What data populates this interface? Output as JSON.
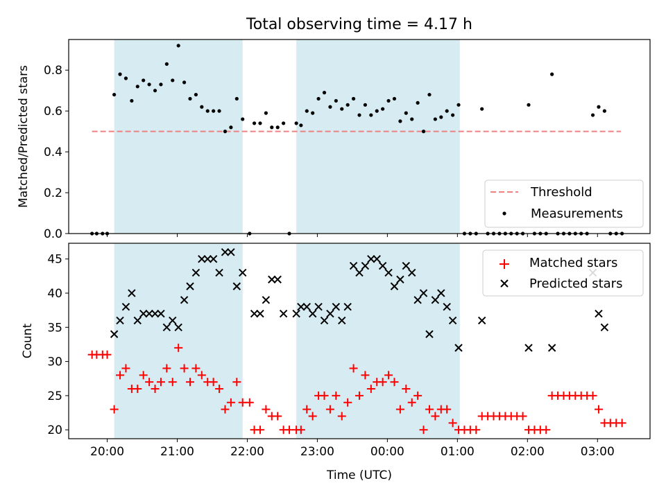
{
  "title": "Total observing time = 4.17 h",
  "chart_data": [
    {
      "type": "scatter",
      "ylabel": "Matched/Predicted stars",
      "ylim": [
        0,
        0.95
      ],
      "yticks": [
        "0.0",
        "0.2",
        "0.4",
        "0.6",
        "0.8"
      ],
      "ytick_values": [
        0,
        0.2,
        0.4,
        0.6,
        0.8
      ],
      "xlim": [
        "19:27",
        "03:45"
      ],
      "shaded_intervals": [
        [
          "20:06",
          "21:56"
        ],
        [
          "22:42",
          "01:02"
        ]
      ],
      "shade_color": "#add8e6",
      "legend_position": "lower right",
      "threshold": {
        "name": "Threshold",
        "value": 0.5,
        "x_range": [
          "19:47",
          "03:20"
        ],
        "color": "#f08080",
        "style": "dashed"
      },
      "series": [
        {
          "name": "Measurements",
          "color": "#000000",
          "x": [
            "19:47",
            "19:51",
            "19:56",
            "20:00",
            "20:06",
            "20:11",
            "20:16",
            "20:21",
            "20:26",
            "20:31",
            "20:36",
            "20:41",
            "20:46",
            "20:51",
            "20:56",
            "21:01",
            "21:06",
            "21:11",
            "21:16",
            "21:21",
            "21:26",
            "21:31",
            "21:36",
            "21:41",
            "21:46",
            "21:51",
            "21:56",
            "22:02",
            "22:06",
            "22:11",
            "22:16",
            "22:21",
            "22:26",
            "22:31",
            "22:36",
            "22:42",
            "22:46",
            "22:51",
            "22:56",
            "23:01",
            "23:06",
            "23:11",
            "23:16",
            "23:21",
            "23:26",
            "23:31",
            "23:36",
            "23:41",
            "23:46",
            "23:51",
            "23:56",
            "00:01",
            "00:06",
            "00:11",
            "00:16",
            "00:21",
            "00:26",
            "00:31",
            "00:36",
            "00:41",
            "00:46",
            "00:51",
            "00:56",
            "01:01",
            "01:06",
            "01:11",
            "01:16",
            "01:21",
            "01:26",
            "01:31",
            "01:36",
            "01:41",
            "01:46",
            "01:51",
            "01:56",
            "02:01",
            "02:06",
            "02:11",
            "02:16",
            "02:21",
            "02:26",
            "02:31",
            "02:36",
            "02:41",
            "02:46",
            "02:51",
            "02:56",
            "03:01",
            "03:06",
            "03:11",
            "03:16",
            "03:21"
          ],
          "y": [
            0.0,
            0.0,
            0.0,
            0.0,
            0.68,
            0.78,
            0.76,
            0.65,
            0.72,
            0.75,
            0.73,
            0.7,
            0.73,
            0.83,
            0.75,
            0.92,
            0.74,
            0.66,
            0.68,
            0.62,
            0.6,
            0.6,
            0.6,
            0.5,
            0.52,
            0.66,
            0.56,
            0.0,
            0.54,
            0.54,
            0.59,
            0.52,
            0.52,
            0.54,
            0.0,
            0.54,
            0.53,
            0.6,
            0.59,
            0.66,
            0.69,
            0.62,
            0.65,
            0.61,
            0.63,
            0.66,
            0.58,
            0.63,
            0.58,
            0.6,
            0.61,
            0.65,
            0.66,
            0.55,
            0.59,
            0.56,
            0.64,
            0.5,
            0.68,
            0.56,
            0.57,
            0.6,
            0.58,
            0.63,
            0.0,
            0.0,
            0.0,
            0.61,
            0.0,
            0.0,
            0.0,
            0.0,
            0.0,
            0.0,
            0.0,
            0.63,
            0.0,
            0.0,
            0.0,
            0.78,
            0.0,
            0.0,
            0.0,
            0.0,
            0.0,
            0.0,
            0.58,
            0.62,
            0.6,
            0.0,
            0.0,
            0.0
          ]
        }
      ]
    },
    {
      "type": "scatter",
      "xlabel": "Time (UTC)",
      "ylabel": "Count",
      "ylim": [
        18.7,
        47.3
      ],
      "yticks": [
        "20",
        "25",
        "30",
        "35",
        "40",
        "45"
      ],
      "ytick_values": [
        20,
        25,
        30,
        35,
        40,
        45
      ],
      "xticks": [
        "20:00",
        "21:00",
        "22:00",
        "23:00",
        "00:00",
        "01:00",
        "02:00",
        "03:00"
      ],
      "xlim": [
        "19:27",
        "03:45"
      ],
      "shaded_intervals": [
        [
          "20:06",
          "21:56"
        ],
        [
          "22:42",
          "01:02"
        ]
      ],
      "shade_color": "#add8e6",
      "legend_position": "upper right",
      "series": [
        {
          "name": "Matched stars",
          "color": "#ff0000",
          "x": [
            "19:47",
            "19:51",
            "19:56",
            "20:00",
            "20:06",
            "20:11",
            "20:16",
            "20:21",
            "20:26",
            "20:31",
            "20:36",
            "20:41",
            "20:46",
            "20:51",
            "20:56",
            "21:01",
            "21:06",
            "21:11",
            "21:16",
            "21:21",
            "21:26",
            "21:31",
            "21:36",
            "21:41",
            "21:46",
            "21:51",
            "21:56",
            "22:02",
            "22:06",
            "22:11",
            "22:16",
            "22:21",
            "22:26",
            "22:31",
            "22:36",
            "22:42",
            "22:46",
            "22:51",
            "22:56",
            "23:01",
            "23:06",
            "23:11",
            "23:16",
            "23:21",
            "23:26",
            "23:31",
            "23:36",
            "23:41",
            "23:46",
            "23:51",
            "23:56",
            "00:01",
            "00:06",
            "00:11",
            "00:16",
            "00:21",
            "00:26",
            "00:31",
            "00:36",
            "00:41",
            "00:46",
            "00:51",
            "00:56",
            "01:01",
            "01:06",
            "01:11",
            "01:16",
            "01:21",
            "01:26",
            "01:31",
            "01:36",
            "01:41",
            "01:46",
            "01:51",
            "01:56",
            "02:01",
            "02:06",
            "02:11",
            "02:16",
            "02:21",
            "02:26",
            "02:31",
            "02:36",
            "02:41",
            "02:46",
            "02:51",
            "02:56",
            "03:01",
            "03:06",
            "03:11",
            "03:16",
            "03:21"
          ],
          "y": [
            31,
            31,
            31,
            31,
            23,
            28,
            29,
            26,
            26,
            28,
            27,
            26,
            27,
            29,
            27,
            32,
            29,
            27,
            29,
            28,
            27,
            27,
            26,
            23,
            24,
            27,
            24,
            24,
            20,
            20,
            23,
            22,
            22,
            20,
            20,
            20,
            20,
            23,
            22,
            25,
            25,
            23,
            25,
            22,
            24,
            29,
            25,
            28,
            26,
            27,
            27,
            28,
            27,
            23,
            26,
            24,
            25,
            20,
            23,
            22,
            23,
            23,
            21,
            20,
            20,
            20,
            20,
            22,
            22,
            22,
            22,
            22,
            22,
            22,
            22,
            20,
            20,
            20,
            20,
            25,
            25,
            25,
            25,
            25,
            25,
            25,
            25,
            23,
            21,
            21,
            21,
            21
          ]
        },
        {
          "name": "Predicted stars",
          "color": "#000000",
          "x": [
            "20:06",
            "20:11",
            "20:16",
            "20:21",
            "20:26",
            "20:31",
            "20:36",
            "20:41",
            "20:46",
            "20:51",
            "20:56",
            "21:01",
            "21:06",
            "21:11",
            "21:16",
            "21:21",
            "21:26",
            "21:31",
            "21:36",
            "21:41",
            "21:46",
            "21:51",
            "21:56",
            "22:06",
            "22:11",
            "22:16",
            "22:21",
            "22:26",
            "22:31",
            "22:42",
            "22:46",
            "22:51",
            "22:56",
            "23:01",
            "23:06",
            "23:11",
            "23:16",
            "23:21",
            "23:26",
            "23:31",
            "23:36",
            "23:41",
            "23:46",
            "23:51",
            "23:56",
            "00:01",
            "00:06",
            "00:11",
            "00:16",
            "00:21",
            "00:26",
            "00:31",
            "00:36",
            "00:41",
            "00:46",
            "00:51",
            "00:56",
            "01:01",
            "01:21",
            "02:01",
            "02:21",
            "02:56",
            "03:01",
            "03:06"
          ],
          "y": [
            34,
            36,
            38,
            40,
            36,
            37,
            37,
            37,
            37,
            35,
            36,
            35,
            39,
            41,
            43,
            45,
            45,
            45,
            43,
            46,
            46,
            41,
            43,
            37,
            37,
            39,
            42,
            42,
            37,
            37,
            38,
            38,
            37,
            38,
            36,
            37,
            38,
            36,
            38,
            44,
            43,
            44,
            45,
            45,
            44,
            43,
            41,
            42,
            44,
            43,
            39,
            40,
            34,
            39,
            40,
            38,
            36,
            32,
            36,
            32,
            32,
            43,
            37,
            35
          ]
        }
      ]
    }
  ]
}
